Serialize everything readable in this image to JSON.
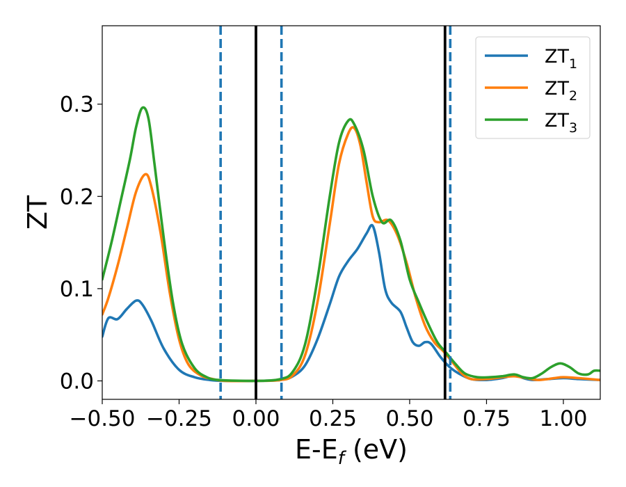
{
  "chart_data": {
    "type": "line",
    "title": "",
    "xlabel": {
      "base": "E-E",
      "subscript": "f",
      "suffix": " (eV)"
    },
    "ylabel": "ZT",
    "xlim": [
      -0.5,
      1.12
    ],
    "ylim": [
      -0.02,
      0.385
    ],
    "xticks": [
      -0.5,
      -0.25,
      0.0,
      0.25,
      0.5,
      0.75,
      1.0
    ],
    "xtick_labels": [
      "−0.50",
      "−0.25",
      "0.00",
      "0.25",
      "0.50",
      "0.75",
      "1.00"
    ],
    "yticks": [
      0.0,
      0.1,
      0.2,
      0.3
    ],
    "ytick_labels": [
      "0.0",
      "0.1",
      "0.2",
      "0.3"
    ],
    "grid": false,
    "legend_position": "top-right",
    "vlines": [
      {
        "x": -0.115,
        "style": "dashed",
        "color": "#1f77b4"
      },
      {
        "x": 0.0,
        "style": "solid",
        "color": "#000000"
      },
      {
        "x": 0.083,
        "style": "dashed",
        "color": "#1f77b4"
      },
      {
        "x": 0.615,
        "style": "solid",
        "color": "#000000"
      },
      {
        "x": 0.632,
        "style": "dashed",
        "color": "#1f77b4"
      }
    ],
    "series": [
      {
        "name": "ZT",
        "subscript": "1",
        "color": "#1f77b4",
        "points": [
          [
            -0.5,
            0.048
          ],
          [
            -0.48,
            0.068
          ],
          [
            -0.45,
            0.067
          ],
          [
            -0.42,
            0.078
          ],
          [
            -0.39,
            0.087
          ],
          [
            -0.37,
            0.083
          ],
          [
            -0.34,
            0.065
          ],
          [
            -0.3,
            0.035
          ],
          [
            -0.25,
            0.012
          ],
          [
            -0.2,
            0.004
          ],
          [
            -0.15,
            0.001
          ],
          [
            -0.1,
            0.0
          ],
          [
            0.0,
            0.0
          ],
          [
            0.08,
            0.001
          ],
          [
            0.12,
            0.005
          ],
          [
            0.16,
            0.017
          ],
          [
            0.2,
            0.045
          ],
          [
            0.24,
            0.083
          ],
          [
            0.27,
            0.113
          ],
          [
            0.3,
            0.13
          ],
          [
            0.33,
            0.143
          ],
          [
            0.36,
            0.16
          ],
          [
            0.38,
            0.168
          ],
          [
            0.4,
            0.14
          ],
          [
            0.42,
            0.1
          ],
          [
            0.44,
            0.085
          ],
          [
            0.47,
            0.075
          ],
          [
            0.49,
            0.058
          ],
          [
            0.51,
            0.042
          ],
          [
            0.53,
            0.038
          ],
          [
            0.55,
            0.042
          ],
          [
            0.57,
            0.04
          ],
          [
            0.6,
            0.026
          ],
          [
            0.63,
            0.015
          ],
          [
            0.66,
            0.008
          ],
          [
            0.7,
            0.002
          ],
          [
            0.75,
            0.001
          ],
          [
            0.8,
            0.003
          ],
          [
            0.84,
            0.006
          ],
          [
            0.87,
            0.003
          ],
          [
            0.9,
            0.001
          ],
          [
            0.95,
            0.002
          ],
          [
            1.0,
            0.003
          ],
          [
            1.05,
            0.002
          ],
          [
            1.12,
            0.001
          ]
        ]
      },
      {
        "name": "ZT",
        "subscript": "2",
        "color": "#ff7f0e",
        "points": [
          [
            -0.5,
            0.072
          ],
          [
            -0.48,
            0.09
          ],
          [
            -0.45,
            0.125
          ],
          [
            -0.42,
            0.165
          ],
          [
            -0.39,
            0.205
          ],
          [
            -0.36,
            0.224
          ],
          [
            -0.34,
            0.21
          ],
          [
            -0.31,
            0.16
          ],
          [
            -0.28,
            0.095
          ],
          [
            -0.25,
            0.045
          ],
          [
            -0.22,
            0.018
          ],
          [
            -0.18,
            0.006
          ],
          [
            -0.14,
            0.002
          ],
          [
            -0.1,
            0.0
          ],
          [
            0.0,
            0.0
          ],
          [
            0.08,
            0.001
          ],
          [
            0.12,
            0.006
          ],
          [
            0.16,
            0.028
          ],
          [
            0.2,
            0.085
          ],
          [
            0.24,
            0.17
          ],
          [
            0.27,
            0.235
          ],
          [
            0.3,
            0.268
          ],
          [
            0.32,
            0.274
          ],
          [
            0.34,
            0.255
          ],
          [
            0.36,
            0.215
          ],
          [
            0.38,
            0.178
          ],
          [
            0.4,
            0.172
          ],
          [
            0.43,
            0.174
          ],
          [
            0.46,
            0.158
          ],
          [
            0.49,
            0.128
          ],
          [
            0.52,
            0.09
          ],
          [
            0.55,
            0.06
          ],
          [
            0.58,
            0.042
          ],
          [
            0.61,
            0.032
          ],
          [
            0.64,
            0.02
          ],
          [
            0.67,
            0.008
          ],
          [
            0.7,
            0.002
          ],
          [
            0.75,
            0.002
          ],
          [
            0.8,
            0.004
          ],
          [
            0.84,
            0.005
          ],
          [
            0.88,
            0.003
          ],
          [
            0.92,
            0.001
          ],
          [
            0.97,
            0.003
          ],
          [
            1.0,
            0.004
          ],
          [
            1.05,
            0.003
          ],
          [
            1.12,
            0.001
          ]
        ]
      },
      {
        "name": "ZT",
        "subscript": "3",
        "color": "#2ca02c",
        "points": [
          [
            -0.5,
            0.11
          ],
          [
            -0.47,
            0.15
          ],
          [
            -0.44,
            0.195
          ],
          [
            -0.41,
            0.24
          ],
          [
            -0.39,
            0.275
          ],
          [
            -0.37,
            0.296
          ],
          [
            -0.35,
            0.285
          ],
          [
            -0.33,
            0.235
          ],
          [
            -0.3,
            0.155
          ],
          [
            -0.27,
            0.085
          ],
          [
            -0.24,
            0.04
          ],
          [
            -0.2,
            0.014
          ],
          [
            -0.16,
            0.004
          ],
          [
            -0.12,
            0.001
          ],
          [
            0.0,
            0.0
          ],
          [
            0.08,
            0.002
          ],
          [
            0.12,
            0.01
          ],
          [
            0.16,
            0.04
          ],
          [
            0.2,
            0.11
          ],
          [
            0.24,
            0.2
          ],
          [
            0.27,
            0.258
          ],
          [
            0.3,
            0.282
          ],
          [
            0.32,
            0.278
          ],
          [
            0.35,
            0.25
          ],
          [
            0.38,
            0.2
          ],
          [
            0.41,
            0.172
          ],
          [
            0.44,
            0.174
          ],
          [
            0.47,
            0.152
          ],
          [
            0.5,
            0.11
          ],
          [
            0.53,
            0.085
          ],
          [
            0.56,
            0.062
          ],
          [
            0.59,
            0.042
          ],
          [
            0.62,
            0.03
          ],
          [
            0.65,
            0.018
          ],
          [
            0.68,
            0.008
          ],
          [
            0.72,
            0.004
          ],
          [
            0.76,
            0.004
          ],
          [
            0.8,
            0.005
          ],
          [
            0.84,
            0.007
          ],
          [
            0.87,
            0.004
          ],
          [
            0.9,
            0.003
          ],
          [
            0.93,
            0.008
          ],
          [
            0.96,
            0.015
          ],
          [
            0.99,
            0.019
          ],
          [
            1.02,
            0.015
          ],
          [
            1.05,
            0.008
          ],
          [
            1.08,
            0.007
          ],
          [
            1.1,
            0.011
          ],
          [
            1.12,
            0.011
          ]
        ]
      }
    ]
  }
}
